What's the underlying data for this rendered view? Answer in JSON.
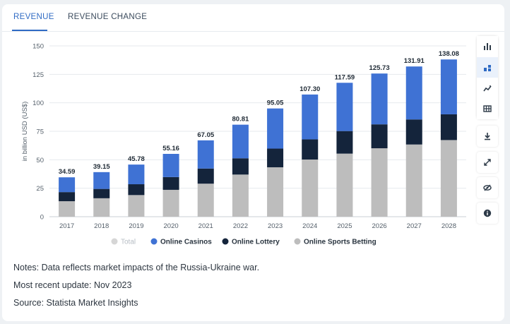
{
  "tabs": [
    {
      "label": "REVENUE",
      "active": true
    },
    {
      "label": "REVENUE CHANGE",
      "active": false
    }
  ],
  "toolbar": {
    "icons": [
      "bar-chart-icon",
      "stacked-bar-icon",
      "line-chart-icon",
      "table-icon",
      "download-icon",
      "fullscreen-icon",
      "hide-icon",
      "info-icon"
    ],
    "selected": "stacked-bar-icon",
    "accent": "#2f6bc4"
  },
  "chart_data": {
    "type": "bar",
    "stacked": true,
    "categories": [
      "2017",
      "2018",
      "2019",
      "2020",
      "2021",
      "2022",
      "2023",
      "2024",
      "2025",
      "2026",
      "2027",
      "2028"
    ],
    "series": [
      {
        "name": "Online Sports Betting",
        "color": "#bdbdbd",
        "values": [
          13.6,
          16.2,
          19.0,
          23.6,
          29.0,
          37.0,
          43.4,
          50.2,
          55.4,
          60.1,
          63.4,
          67.3
        ]
      },
      {
        "name": "Online Lottery",
        "color": "#14243b",
        "values": [
          8.0,
          8.2,
          9.5,
          11.2,
          13.3,
          14.3,
          16.4,
          17.7,
          19.8,
          21.0,
          22.0,
          22.6
        ]
      },
      {
        "name": "Online Casinos",
        "color": "#3f72d4",
        "values": [
          12.99,
          14.75,
          17.28,
          20.36,
          24.75,
          29.51,
          35.25,
          39.4,
          42.39,
          44.63,
          46.51,
          48.18
        ]
      }
    ],
    "totals": [
      34.59,
      39.15,
      45.78,
      55.16,
      67.05,
      80.81,
      95.05,
      107.3,
      117.59,
      125.73,
      131.91,
      138.08
    ],
    "total_labels": [
      "34.59",
      "39.15",
      "45.78",
      "55.16",
      "67.05",
      "80.81",
      "95.05",
      "107.30",
      "117.59",
      "125.73",
      "131.91",
      "138.08"
    ],
    "ylabel": "in billion USD (US$)",
    "ylim": [
      0,
      150
    ],
    "yticks": [
      0,
      25,
      50,
      75,
      100,
      125,
      150
    ],
    "grid": true,
    "legend_position": "bottom",
    "legend": [
      {
        "name": "Total",
        "color": "#d6d6d6",
        "muted": true
      },
      {
        "name": "Online Casinos",
        "color": "#3f72d4",
        "muted": false
      },
      {
        "name": "Online Lottery",
        "color": "#14243b",
        "muted": false
      },
      {
        "name": "Online Sports Betting",
        "color": "#bdbdbd",
        "muted": false
      }
    ]
  },
  "notes": {
    "line1": "Notes: Data reflects market impacts of the Russia-Ukraine war.",
    "line2": "Most recent update: Nov 2023",
    "line3": "Source: Statista Market Insights"
  }
}
